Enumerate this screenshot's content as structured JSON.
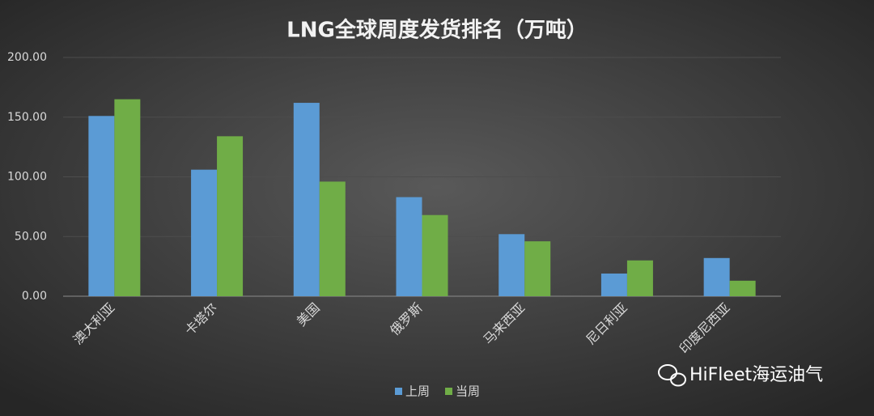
{
  "chart_data": {
    "type": "bar",
    "title": "LNG全球周度发货排名（万吨）",
    "categories": [
      "澳大利亚",
      "卡塔尔",
      "美国",
      "俄罗斯",
      "马来西亚",
      "尼日利亚",
      "印度尼西亚"
    ],
    "series": [
      {
        "name": "上周",
        "color": "#5b9bd5",
        "values": [
          151,
          106,
          162,
          83,
          52,
          19,
          32
        ]
      },
      {
        "name": "当周",
        "color": "#70ad47",
        "values": [
          165,
          134,
          96,
          68,
          46,
          30,
          13
        ]
      }
    ],
    "ylim": [
      0,
      200
    ],
    "yticks": [
      {
        "value": 0,
        "label": "0.00"
      },
      {
        "value": 50,
        "label": "50.00"
      },
      {
        "value": 100,
        "label": "100.00"
      },
      {
        "value": 150,
        "label": "150.00"
      },
      {
        "value": 200,
        "label": "200.00"
      }
    ],
    "grid": true,
    "legend": "bottom",
    "watermark": "HiFleet海运油气"
  }
}
